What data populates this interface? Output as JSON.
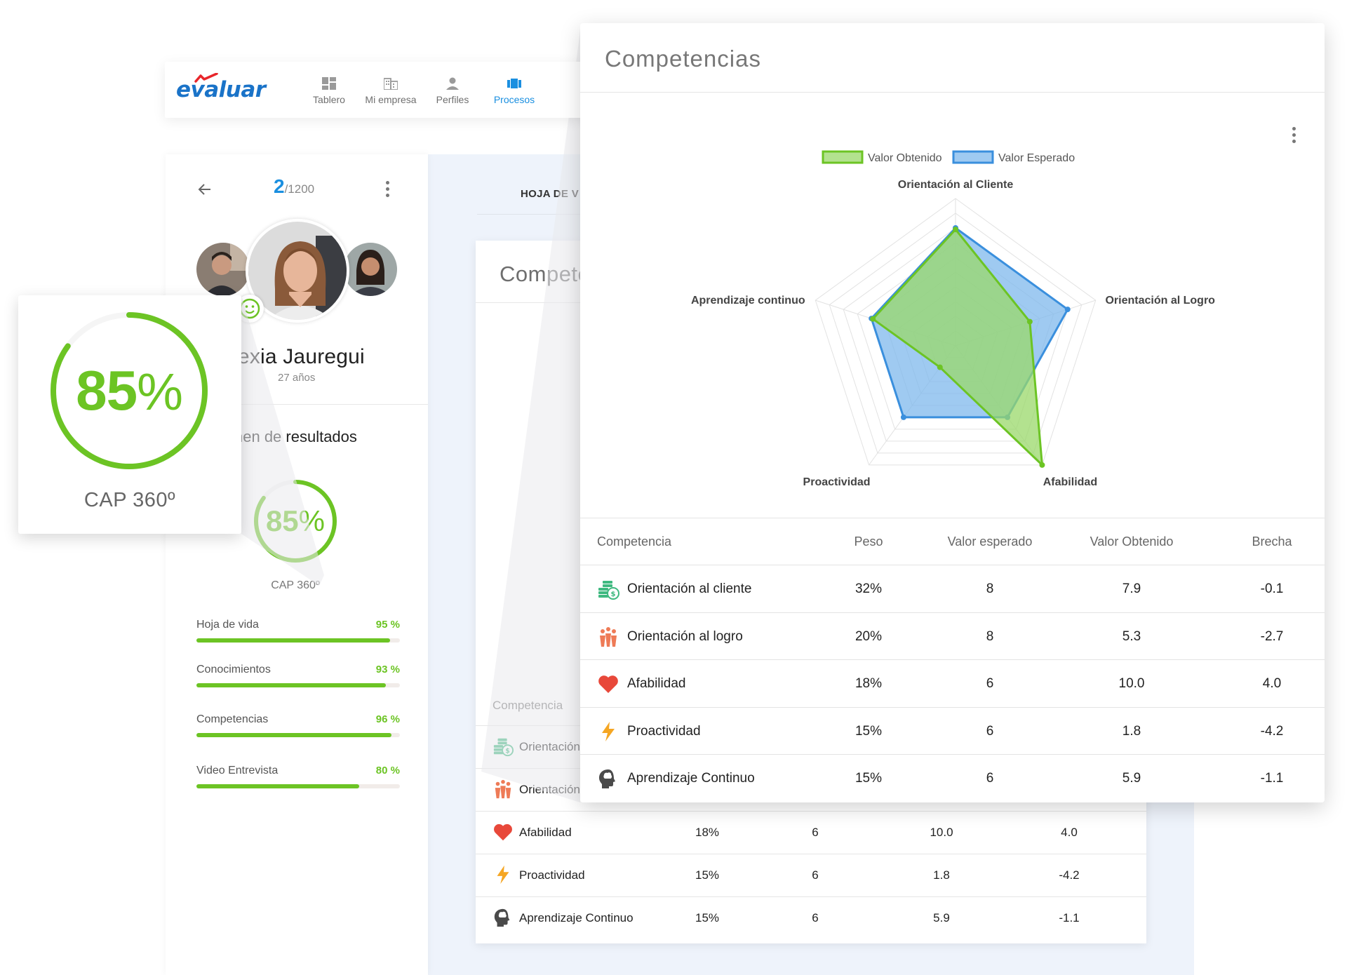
{
  "nav": {
    "logo": "evaluar",
    "items": [
      {
        "label": "Tablero",
        "icon": "dashboard-icon",
        "active": false
      },
      {
        "label": "Mi empresa",
        "icon": "building-icon",
        "active": false
      },
      {
        "label": "Perfiles",
        "icon": "person-icon",
        "active": false
      },
      {
        "label": "Procesos",
        "icon": "processes-icon",
        "active": true
      }
    ]
  },
  "profile": {
    "counter_current": "2",
    "counter_total": "/1200",
    "name": "lexia Jauregui",
    "age": "27 años",
    "section_title": "nen de resultados",
    "score": "85",
    "score_unit": "%",
    "score_value": 0.85,
    "score_label": "CAP 360º",
    "bars": [
      {
        "label": "Hoja de vida",
        "value": "95 %",
        "fraction": 0.95
      },
      {
        "label": "Conocimientos",
        "value": "93 %",
        "fraction": 0.93
      },
      {
        "label": "Competencias",
        "value": "96 %",
        "fraction": 0.96
      },
      {
        "label": "Video Entrevista",
        "value": "80 %",
        "fraction": 0.8
      }
    ]
  },
  "scorecard": {
    "score": "85",
    "unit": "%",
    "label": "CAP 360º"
  },
  "background": {
    "tab": "HOJA DE V",
    "card_title": "Compete",
    "col_header": "Competencia",
    "rows": [
      {
        "name": "Orientación",
        "icon": "money-icon",
        "peso": "",
        "esperado": "",
        "obtenido": "",
        "brecha": ""
      },
      {
        "name": "Orientación",
        "icon": "team-icon",
        "peso": "",
        "esperado": "",
        "obtenido": "",
        "brecha": ""
      },
      {
        "name": "Afabilidad",
        "icon": "heart-icon",
        "peso": "18%",
        "esperado": "6",
        "obtenido": "10.0",
        "brecha": "4.0"
      },
      {
        "name": "Proactividad",
        "icon": "lightning-icon",
        "peso": "15%",
        "esperado": "6",
        "obtenido": "1.8",
        "brecha": "-4.2"
      },
      {
        "name": "Aprendizaje Continuo",
        "icon": "brain-head-icon",
        "peso": "15%",
        "esperado": "6",
        "obtenido": "5.9",
        "brecha": "-1.1"
      }
    ]
  },
  "main": {
    "title": "Competencias",
    "table": {
      "headers": [
        "Competencia",
        "Peso",
        "Valor esperado",
        "Valor Obtenido",
        "Brecha"
      ],
      "rows": [
        {
          "name": "Orientación al cliente",
          "icon": "money-icon",
          "peso": "32%",
          "esperado": "8",
          "obtenido": "7.9",
          "brecha": "-0.1"
        },
        {
          "name": "Orientación al logro",
          "icon": "team-icon",
          "peso": "20%",
          "esperado": "8",
          "obtenido": "5.3",
          "brecha": "-2.7"
        },
        {
          "name": "Afabilidad",
          "icon": "heart-icon",
          "peso": "18%",
          "esperado": "6",
          "obtenido": "10.0",
          "brecha": "4.0"
        },
        {
          "name": "Proactividad",
          "icon": "lightning-icon",
          "peso": "15%",
          "esperado": "6",
          "obtenido": "1.8",
          "brecha": "-4.2"
        },
        {
          "name": "Aprendizaje Continuo",
          "icon": "brain-head-icon",
          "peso": "15%",
          "esperado": "6",
          "obtenido": "5.9",
          "brecha": "-1.1"
        }
      ]
    }
  },
  "colors": {
    "accent_green": "#6cc424",
    "accent_blue": "#1a8fe0",
    "radar_blue_fill": "#7fb8ec",
    "radar_green_fill": "#9ad86a"
  },
  "chart_data": {
    "type": "radar",
    "categories": [
      "Orientación al Cliente",
      "Orientación al Logro",
      "Afabilidad",
      "Proactividad",
      "Aprendizaje continuo"
    ],
    "series": [
      {
        "name": "Valor Obtenido",
        "values": [
          7.9,
          5.3,
          10.0,
          1.8,
          5.9
        ]
      },
      {
        "name": "Valor Esperado",
        "values": [
          8,
          8,
          6,
          6,
          6
        ]
      }
    ],
    "rlim": [
      0,
      10
    ],
    "grid": true,
    "legend_position": "top"
  }
}
